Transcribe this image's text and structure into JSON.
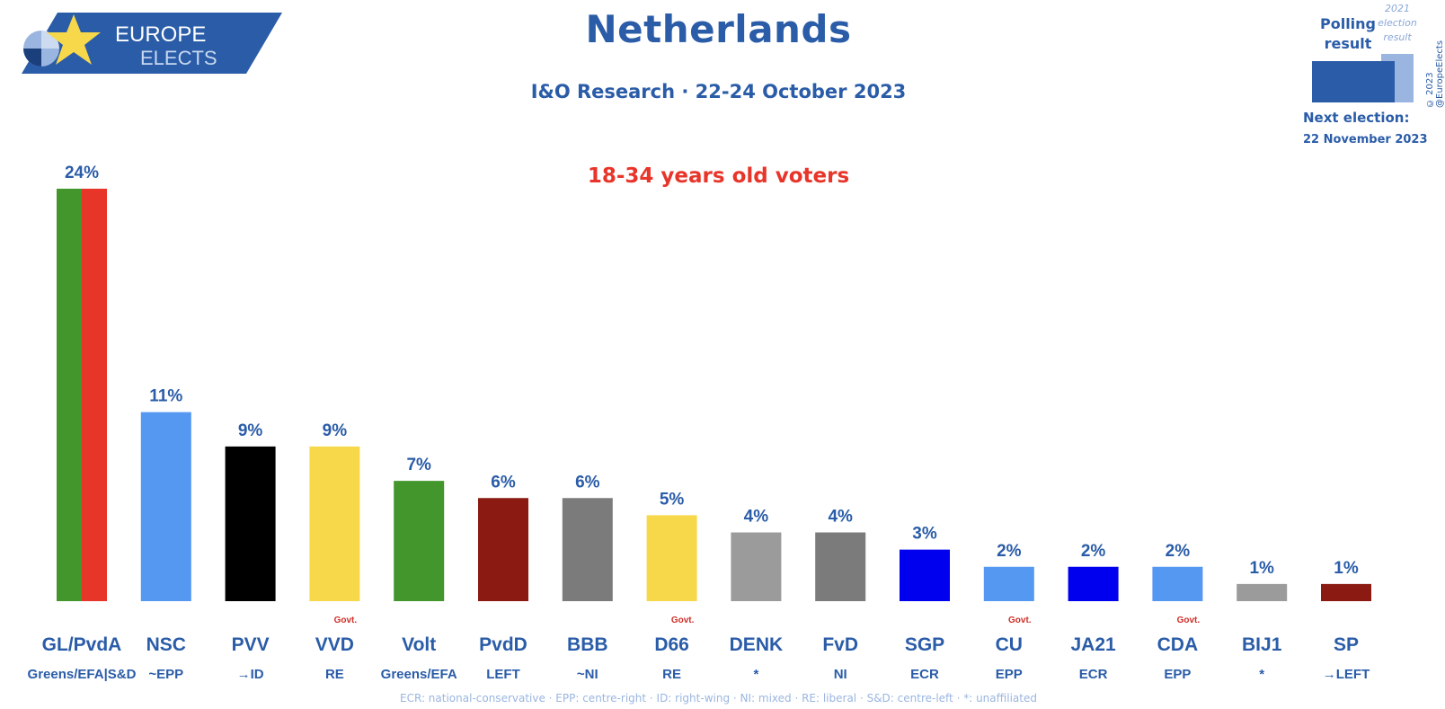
{
  "brand": {
    "line1": "EUROPE",
    "line2": "ELECTS"
  },
  "header": {
    "title": "Netherlands",
    "subtitle": "I&O Research · 22-24 October 2023",
    "segment": "18-34 years old voters"
  },
  "legend": {
    "polling_label": "Polling result",
    "previous_label": "2021 election result",
    "next_election_label": "Next election:",
    "next_election_date": "22 November 2023",
    "copyright": "© 2023 @EuropeElects"
  },
  "footer": {
    "note": "ECR: national-conservative · EPP: centre-right · ID: right-wing · NI: mixed · RE: liberal · S&D: centre-left · *: unaffiliated"
  },
  "colors": {
    "title": "#2a5ca8",
    "accent": "#e8352a",
    "govt": "#d0302a"
  },
  "chart_data": {
    "type": "bar",
    "title": "Netherlands",
    "ylabel": "",
    "xlabel": "",
    "ylim": [
      0,
      24
    ],
    "categories": [
      "GL/PvdA",
      "NSC",
      "PVV",
      "VVD",
      "Volt",
      "PvdD",
      "BBB",
      "D66",
      "DENK",
      "FvD",
      "SGP",
      "CU",
      "JA21",
      "CDA",
      "BIJ1",
      "SP"
    ],
    "values": [
      24,
      11,
      9,
      9,
      7,
      6,
      6,
      5,
      4,
      4,
      3,
      2,
      2,
      2,
      1,
      1
    ],
    "value_labels": [
      "24%",
      "11%",
      "9%",
      "9%",
      "7%",
      "6%",
      "6%",
      "5%",
      "4%",
      "4%",
      "3%",
      "2%",
      "2%",
      "2%",
      "1%",
      "1%"
    ],
    "groups": [
      "Greens/EFA|S&D",
      "~EPP",
      "→ID",
      "RE",
      "Greens/EFA",
      "LEFT",
      "~NI",
      "RE",
      "*",
      "NI",
      "ECR",
      "EPP",
      "ECR",
      "EPP",
      "*",
      "→LEFT"
    ],
    "govt": [
      false,
      false,
      false,
      true,
      false,
      false,
      false,
      true,
      false,
      false,
      false,
      true,
      false,
      true,
      false,
      false
    ],
    "govt_label": "Govt.",
    "colors": [
      [
        "#43962c",
        "#e8352a"
      ],
      [
        "#5598f2"
      ],
      [
        "#000000"
      ],
      [
        "#f7d84a"
      ],
      [
        "#43962c"
      ],
      [
        "#8a1a12"
      ],
      [
        "#7b7b7b"
      ],
      [
        "#f7d84a"
      ],
      [
        "#9b9b9b"
      ],
      [
        "#7b7b7b"
      ],
      [
        "#0000ee"
      ],
      [
        "#5598f2"
      ],
      [
        "#0000ee"
      ],
      [
        "#5598f2"
      ],
      [
        "#9b9b9b"
      ],
      [
        "#8a1a12"
      ]
    ]
  }
}
